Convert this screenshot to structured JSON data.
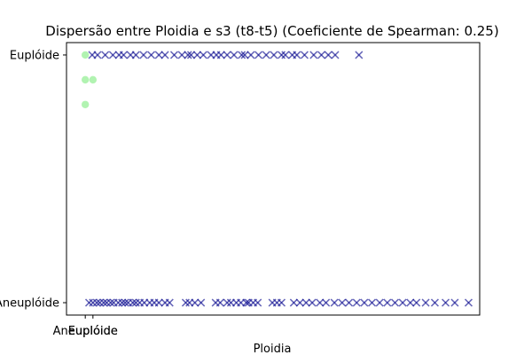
{
  "chart_data": {
    "type": "scatter",
    "title": "Dispersão entre Ploidia e s3 (t8-t5) (Coeficiente de Spearman: 0.25)",
    "xlabel": "Ploidia",
    "ylabel": "",
    "xlim": [
      -2.45,
      51.45
    ],
    "ylim": [
      -0.05,
      1.05
    ],
    "x_ticks": [
      {
        "value": 0,
        "label": "Aneuplóide"
      },
      {
        "value": 1,
        "label": "Euplóide"
      }
    ],
    "y_ticks": [
      {
        "value": 0,
        "label": "Aneuplóide"
      },
      {
        "value": 1,
        "label": "Euplóide"
      }
    ],
    "grid": false,
    "legend": "none",
    "series": [
      {
        "marker": "circle",
        "color": "#90ee90",
        "points": [
          [
            0,
            1
          ],
          [
            0,
            0.9
          ],
          [
            1,
            0.9
          ],
          [
            0,
            0.8
          ]
        ]
      },
      {
        "marker": "x",
        "color": "#00008b",
        "points_euploide": [
          0.9,
          1.6,
          2.6,
          3.6,
          4.4,
          5.0,
          5.9,
          6.6,
          7.6,
          8.6,
          9.6,
          10.4,
          11.6,
          12.6,
          13.4,
          13.8,
          14.6,
          15.4,
          16.4,
          17.1,
          17.7,
          18.5,
          19.4,
          20.4,
          20.8,
          21.6,
          22.6,
          23.6,
          24.6,
          25.6,
          26.1,
          27.0,
          27.6,
          28.6,
          29.8,
          30.8,
          31.7,
          32.6,
          35.7
        ],
        "points_aneuploide": [
          0.5,
          1.0,
          1.5,
          1.9,
          2.4,
          2.8,
          3.3,
          3.7,
          4.3,
          4.8,
          5.2,
          5.6,
          6.2,
          6.6,
          7.1,
          7.7,
          8.4,
          9.0,
          9.6,
          10.4,
          11.0,
          13.1,
          13.6,
          14.3,
          15.1,
          17.0,
          17.6,
          18.5,
          19.0,
          19.7,
          20.3,
          21.0,
          21.3,
          21.9,
          22.5,
          24.4,
          25.0,
          25.6,
          27.2,
          28.0,
          28.8,
          29.6,
          30.6,
          31.4,
          32.5,
          33.5,
          34.4,
          35.4,
          36.4,
          37.4,
          38.4,
          39.4,
          40.4,
          41.4,
          42.4,
          43.2,
          44.4,
          45.6,
          47.0,
          48.2,
          50.0
        ]
      }
    ]
  }
}
